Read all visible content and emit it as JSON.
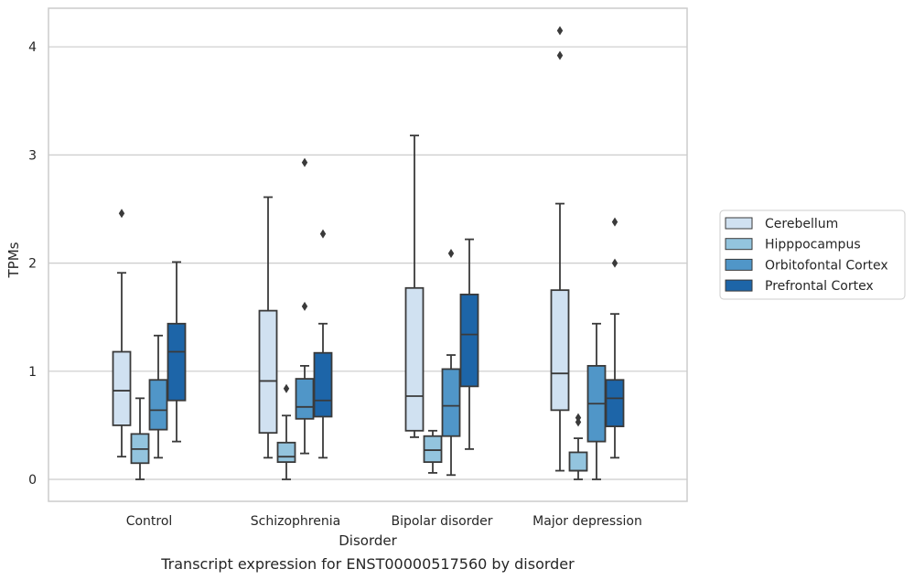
{
  "chart_data": {
    "type": "box",
    "caption": "Transcript expression for ENST00000517560 by disorder",
    "xlabel": "Disorder",
    "ylabel": "TPMs",
    "ylim": [
      -0.2,
      4.35
    ],
    "yticks": [
      0,
      1,
      2,
      3,
      4
    ],
    "grid": "horizontal",
    "legend_position": "right",
    "categories": [
      "Control",
      "Schizophrenia",
      "Bipolar disorder",
      "Major depression"
    ],
    "series": [
      {
        "name": "Cerebellum",
        "color": "#d0e1f1",
        "boxes": [
          {
            "whisker_low": 0.21,
            "q1": 0.5,
            "median": 0.82,
            "q3": 1.18,
            "whisker_high": 1.91,
            "outliers": [
              2.46
            ]
          },
          {
            "whisker_low": 0.2,
            "q1": 0.43,
            "median": 0.91,
            "q3": 1.56,
            "whisker_high": 2.61,
            "outliers": []
          },
          {
            "whisker_low": 0.39,
            "q1": 0.45,
            "median": 0.77,
            "q3": 1.77,
            "whisker_high": 3.18,
            "outliers": []
          },
          {
            "whisker_low": 0.08,
            "q1": 0.64,
            "median": 0.98,
            "q3": 1.75,
            "whisker_high": 2.55,
            "outliers": [
              3.92,
              4.15
            ]
          }
        ]
      },
      {
        "name": "Hipppocampus",
        "color": "#93c4de",
        "boxes": [
          {
            "whisker_low": 0.0,
            "q1": 0.15,
            "median": 0.28,
            "q3": 0.42,
            "whisker_high": 0.75,
            "outliers": []
          },
          {
            "whisker_low": 0.0,
            "q1": 0.16,
            "median": 0.21,
            "q3": 0.34,
            "whisker_high": 0.59,
            "outliers": [
              0.84
            ]
          },
          {
            "whisker_low": 0.06,
            "q1": 0.16,
            "median": 0.27,
            "q3": 0.4,
            "whisker_high": 0.45,
            "outliers": []
          },
          {
            "whisker_low": 0.0,
            "q1": 0.08,
            "median": 0.08,
            "q3": 0.25,
            "whisker_high": 0.38,
            "outliers": [
              0.53,
              0.57
            ]
          }
        ]
      },
      {
        "name": "Orbitofontal Cortex",
        "color": "#5096c8",
        "boxes": [
          {
            "whisker_low": 0.2,
            "q1": 0.46,
            "median": 0.64,
            "q3": 0.92,
            "whisker_high": 1.33,
            "outliers": []
          },
          {
            "whisker_low": 0.24,
            "q1": 0.56,
            "median": 0.67,
            "q3": 0.93,
            "whisker_high": 1.05,
            "outliers": [
              1.6,
              2.93
            ]
          },
          {
            "whisker_low": 0.04,
            "q1": 0.4,
            "median": 0.68,
            "q3": 1.02,
            "whisker_high": 1.15,
            "outliers": [
              2.09
            ]
          },
          {
            "whisker_low": 0.0,
            "q1": 0.35,
            "median": 0.7,
            "q3": 1.05,
            "whisker_high": 1.44,
            "outliers": []
          }
        ]
      },
      {
        "name": "Prefrontal Cortex",
        "color": "#1d65a8",
        "boxes": [
          {
            "whisker_low": 0.35,
            "q1": 0.73,
            "median": 1.18,
            "q3": 1.44,
            "whisker_high": 2.01,
            "outliers": []
          },
          {
            "whisker_low": 0.2,
            "q1": 0.58,
            "median": 0.73,
            "q3": 1.17,
            "whisker_high": 1.44,
            "outliers": [
              2.27
            ]
          },
          {
            "whisker_low": 0.28,
            "q1": 0.86,
            "median": 1.34,
            "q3": 1.71,
            "whisker_high": 2.22,
            "outliers": []
          },
          {
            "whisker_low": 0.2,
            "q1": 0.49,
            "median": 0.75,
            "q3": 0.92,
            "whisker_high": 1.53,
            "outliers": [
              2.0,
              2.38
            ]
          }
        ]
      }
    ]
  }
}
